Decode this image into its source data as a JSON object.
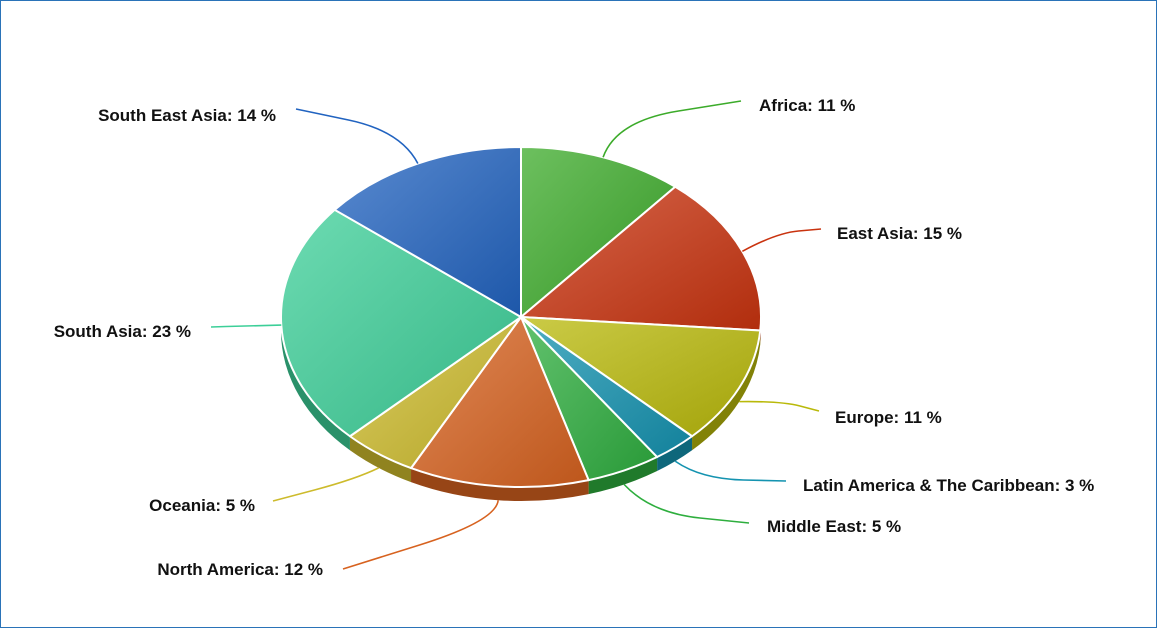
{
  "chart_data": {
    "type": "pie",
    "title": "",
    "unit": "%",
    "slices": [
      {
        "label": "Africa",
        "value": 11,
        "display": "Africa: 11 %",
        "color": "#3cab2a"
      },
      {
        "label": "East Asia",
        "value": 15,
        "display": "East Asia: 15 %",
        "color": "#c9330f"
      },
      {
        "label": "Europe",
        "value": 11,
        "display": "Europe: 11 %",
        "color": "#b9b90a"
      },
      {
        "label": "Latin America & The Caribbean",
        "value": 3,
        "display": "Latin America & The Caribbean: 3 %",
        "color": "#1493b0"
      },
      {
        "label": "Middle East",
        "value": 5,
        "display": "Middle East: 5 %",
        "color": "#2eae3e"
      },
      {
        "label": "North America",
        "value": 12,
        "display": "North America: 12 %",
        "color": "#d7621f"
      },
      {
        "label": "Oceania",
        "value": 5,
        "display": "Oceania: 5 %",
        "color": "#cdbb2c"
      },
      {
        "label": "South Asia",
        "value": 23,
        "display": "South Asia: 23 %",
        "color": "#3ccf98"
      },
      {
        "label": "South East Asia",
        "value": 14,
        "display": "South East Asia: 14 %",
        "color": "#2163c0"
      }
    ]
  }
}
